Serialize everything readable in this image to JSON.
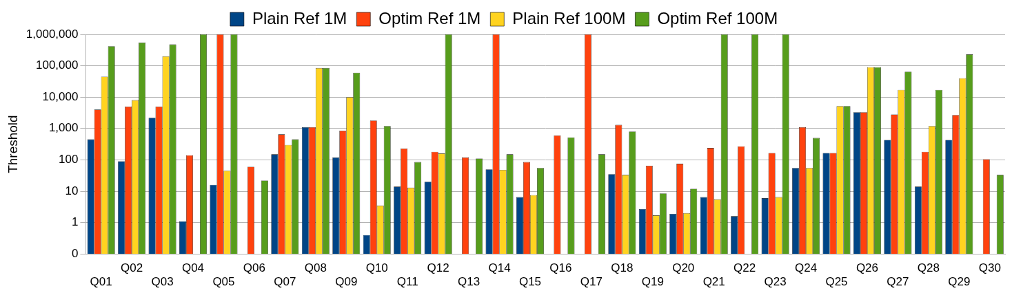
{
  "chart_data": {
    "type": "bar",
    "y_label": "Threshold",
    "categories": [
      "Q01",
      "Q02",
      "Q03",
      "Q04",
      "Q05",
      "Q06",
      "Q07",
      "Q08",
      "Q09",
      "Q10",
      "Q11",
      "Q12",
      "Q13",
      "Q14",
      "Q15",
      "Q16",
      "Q17",
      "Q18",
      "Q19",
      "Q20",
      "Q21",
      "Q22",
      "Q23",
      "Q24",
      "Q25",
      "Q26",
      "Q27",
      "Q28",
      "Q29",
      "Q30"
    ],
    "series": [
      {
        "name": "Plain Ref 1M",
        "color": "#004586",
        "values": [
          450,
          90,
          2200,
          1.1,
          16,
          null,
          150,
          1100,
          120,
          0.4,
          14,
          20,
          null,
          50,
          6.5,
          null,
          null,
          35,
          2.7,
          1.9,
          6.5,
          1.6,
          6,
          55,
          165,
          3300,
          430,
          14,
          430,
          null
        ]
      },
      {
        "name": "Optim Ref 1M",
        "color": "#ff420e",
        "values": [
          4000,
          5000,
          5000,
          140,
          1000000,
          60,
          650,
          1100,
          850,
          1800,
          230,
          180,
          120,
          1000000,
          85,
          600,
          1000000,
          1300,
          65,
          75,
          240,
          270,
          165,
          1100,
          165,
          3300,
          2800,
          180,
          2700,
          105
        ]
      },
      {
        "name": "Plain Ref 100M",
        "color": "#ffd320",
        "values": [
          45000,
          8000,
          200000,
          null,
          45,
          null,
          300,
          85000,
          10000,
          3.5,
          13,
          160,
          null,
          48,
          7.5,
          null,
          null,
          33,
          1.7,
          2,
          5.5,
          null,
          6.5,
          55,
          5200,
          90000,
          17000,
          1200,
          40000,
          null
        ]
      },
      {
        "name": "Optim Ref 100M",
        "color": "#579d1c",
        "values": [
          420000,
          550000,
          480000,
          1000000,
          1000000,
          22,
          450,
          85000,
          60000,
          1200,
          85,
          1000000,
          110,
          150,
          55,
          520,
          150,
          800,
          8.5,
          12,
          1000000,
          1000000,
          1000000,
          500,
          5200,
          90000,
          65000,
          17000,
          230000,
          33
        ]
      }
    ],
    "log": "y",
    "ylim": [
      0.1,
      1000000
    ],
    "yticks": [
      {
        "value": 0.1,
        "label": "0"
      },
      1,
      10,
      100,
      {
        "value": 1000,
        "label": "1,000"
      },
      {
        "value": 10000,
        "label": "10,000"
      },
      {
        "value": 100000,
        "label": "100,000"
      },
      {
        "value": 1000000,
        "label": "1,000,000"
      }
    ],
    "grid": true,
    "legend": "top"
  }
}
